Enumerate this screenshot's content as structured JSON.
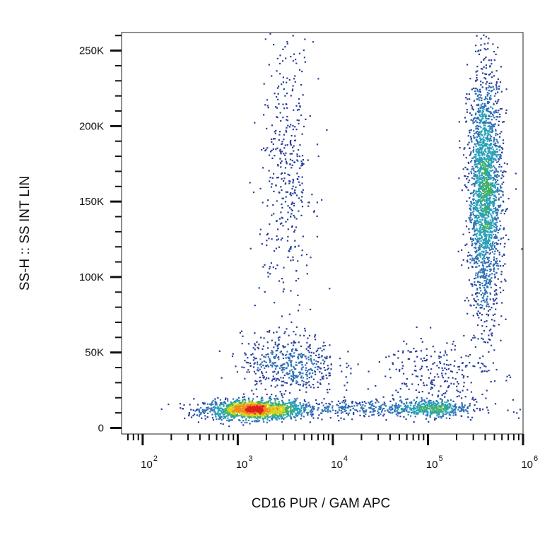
{
  "chart_data": {
    "type": "scatter",
    "subtype": "flow-cytometry-density-dot-plot",
    "xlabel": "CD16 PUR / GAM APC",
    "ylabel": "SS-H :: SS INT LIN",
    "x_scale": "log",
    "y_scale": "linear",
    "xlim": [
      60,
      1000000
    ],
    "ylim": [
      -4000,
      262000
    ],
    "x_ticks": [
      {
        "value": 100,
        "base": "10",
        "exp": "2"
      },
      {
        "value": 1000,
        "base": "10",
        "exp": "3"
      },
      {
        "value": 10000,
        "base": "10",
        "exp": "4"
      },
      {
        "value": 100000,
        "base": "10",
        "exp": "5"
      },
      {
        "value": 1000000,
        "base": "10",
        "exp": "6"
      }
    ],
    "y_ticks": [
      {
        "value": 0,
        "label": "0"
      },
      {
        "value": 50000,
        "label": "50K"
      },
      {
        "value": 100000,
        "label": "100K"
      },
      {
        "value": 150000,
        "label": "150K"
      },
      {
        "value": 200000,
        "label": "200K"
      },
      {
        "value": 250000,
        "label": "250K"
      }
    ],
    "grid": false,
    "legend": "none",
    "density_colormap": [
      "#2a3f9a",
      "#2f6fb5",
      "#28a0b8",
      "#3fb06a",
      "#d8d41e",
      "#f08a1c",
      "#e01f1f"
    ],
    "populations": [
      {
        "center_x": 1500,
        "center_y": 12000,
        "log10_spread_x": 0.26,
        "spread_y": 3200,
        "point_count": 1500
      },
      {
        "center_x": 25000,
        "center_y": 13000,
        "log10_spread_x": 0.55,
        "spread_y": 3000,
        "point_count": 420
      },
      {
        "center_x": 110000,
        "center_y": 13000,
        "log10_spread_x": 0.18,
        "spread_y": 3000,
        "point_count": 320
      },
      {
        "center_x": 3500,
        "center_y": 42000,
        "log10_spread_x": 0.25,
        "spread_y": 10000,
        "point_count": 500
      },
      {
        "center_x": 3300,
        "center_y": 170000,
        "log10_spread_x": 0.14,
        "spread_y": 45000,
        "point_count": 420
      },
      {
        "center_x": 400000,
        "center_y": 155000,
        "log10_spread_x": 0.09,
        "spread_y": 40000,
        "point_count": 2200
      },
      {
        "center_x": 120000,
        "center_y": 35000,
        "log10_spread_x": 0.3,
        "spread_y": 14000,
        "point_count": 260
      }
    ]
  }
}
